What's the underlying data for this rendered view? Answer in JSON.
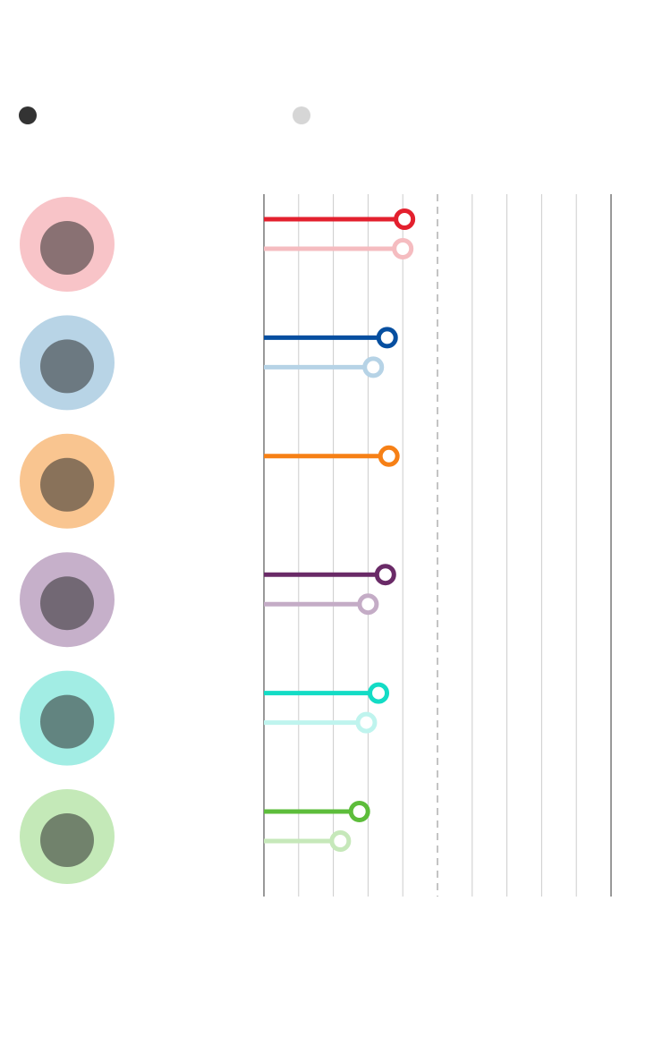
{
  "chart_data": {
    "type": "lollipop",
    "categories": [
      null,
      null,
      null,
      null,
      null,
      null
    ],
    "avatar_colors": [
      "#f8c4c8",
      "#b8d4e6",
      "#f9c590",
      "#c6b0ca",
      "#a2ede4",
      "#c4e9b8"
    ],
    "series": [
      {
        "color": "#333333",
        "colors": [
          "#e3202e",
          "#064fa0",
          "#f68016",
          "#6a2a67",
          "#13dcc5",
          "#5dbd3b"
        ],
        "values": [
          4.05,
          3.55,
          3.6,
          3.5,
          3.3,
          2.75
        ]
      },
      {
        "color": "#d6d6d6",
        "colors": [
          "#f5bcc0",
          "#b6d3e6",
          "#fbc592",
          "#c4acc6",
          "#bff4ee",
          "#c6e8ba"
        ],
        "values": [
          4.0,
          3.15,
          null,
          3.0,
          2.95,
          2.2
        ]
      }
    ],
    "xlim": [
      0,
      10
    ],
    "xticks": [
      0,
      1,
      2,
      3,
      4,
      5,
      6,
      7,
      8,
      9,
      10
    ],
    "midline": 5
  }
}
